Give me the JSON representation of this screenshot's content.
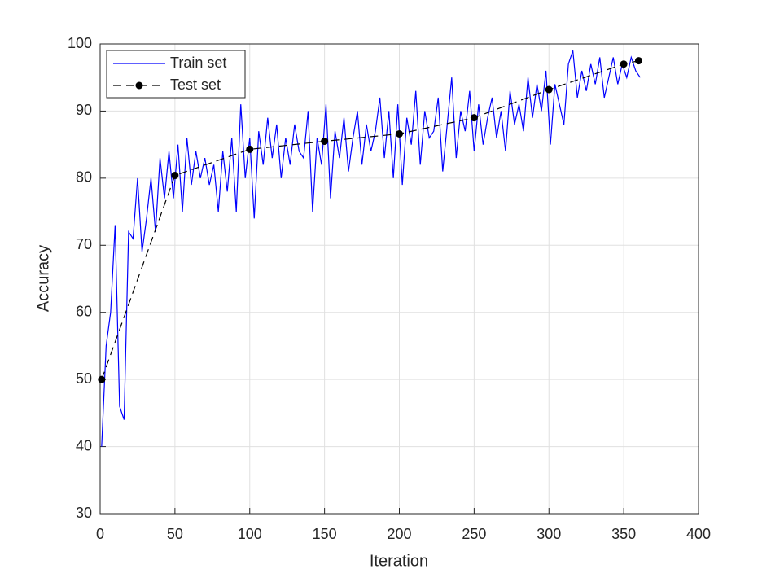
{
  "chart_data": {
    "type": "line",
    "xlabel": "Iteration",
    "ylabel": "Accuracy",
    "xlim": [
      0,
      400
    ],
    "xticks": [
      0,
      50,
      100,
      150,
      200,
      250,
      300,
      350,
      400
    ],
    "ylim": [
      30,
      100
    ],
    "yticks": [
      30,
      40,
      50,
      60,
      70,
      80,
      90,
      100
    ],
    "grid": true,
    "legend": "northwest",
    "series": [
      {
        "name": "Train set",
        "color": "#0000ff",
        "style": "solid",
        "marker": false,
        "x": [
          1,
          4,
          7,
          10,
          13,
          16,
          19,
          22,
          25,
          28,
          31,
          34,
          37,
          40,
          43,
          46,
          49,
          52,
          55,
          58,
          61,
          64,
          67,
          70,
          73,
          76,
          79,
          82,
          85,
          88,
          91,
          94,
          97,
          100,
          103,
          106,
          109,
          112,
          115,
          118,
          121,
          124,
          127,
          130,
          133,
          136,
          139,
          142,
          145,
          148,
          151,
          154,
          157,
          160,
          163,
          166,
          169,
          172,
          175,
          178,
          181,
          184,
          187,
          190,
          193,
          196,
          199,
          202,
          205,
          208,
          211,
          214,
          217,
          220,
          223,
          226,
          229,
          232,
          235,
          238,
          241,
          244,
          247,
          250,
          253,
          256,
          259,
          262,
          265,
          268,
          271,
          274,
          277,
          280,
          283,
          286,
          289,
          292,
          295,
          298,
          301,
          304,
          307,
          310,
          313,
          316,
          319,
          322,
          325,
          328,
          331,
          334,
          337,
          340,
          343,
          346,
          349,
          352,
          355,
          358,
          361
        ],
        "values": [
          40,
          55,
          60,
          73,
          46,
          44,
          72,
          71,
          80,
          69,
          74,
          80,
          72,
          83,
          77,
          84,
          77,
          85,
          75,
          86,
          79,
          84,
          80,
          83,
          79,
          82,
          75,
          84,
          78,
          86,
          75,
          91,
          80,
          86,
          74,
          87,
          82,
          89,
          83,
          88,
          80,
          86,
          82,
          88,
          84,
          83,
          90,
          75,
          86,
          82,
          91,
          77,
          87,
          83,
          89,
          81,
          86,
          90,
          82,
          88,
          84,
          87,
          92,
          83,
          90,
          80,
          91,
          79,
          89,
          85,
          93,
          82,
          90,
          86,
          87,
          92,
          81,
          88,
          95,
          83,
          90,
          87,
          93,
          84,
          91,
          85,
          89,
          92,
          86,
          90,
          84,
          93,
          88,
          91,
          87,
          95,
          89,
          94,
          90,
          96,
          85,
          94,
          91,
          88,
          97,
          99,
          92,
          96,
          93,
          97,
          94,
          98,
          92,
          95,
          98,
          94,
          97,
          95,
          98,
          96,
          95
        ]
      },
      {
        "name": "Test set",
        "color": "#000000",
        "style": "dashed",
        "marker": true,
        "x": [
          1,
          50,
          100,
          150,
          200,
          250,
          300,
          350,
          360
        ],
        "values": [
          50,
          80.4,
          84.3,
          85.5,
          86.6,
          89,
          93.2,
          97,
          97.5
        ]
      }
    ]
  }
}
